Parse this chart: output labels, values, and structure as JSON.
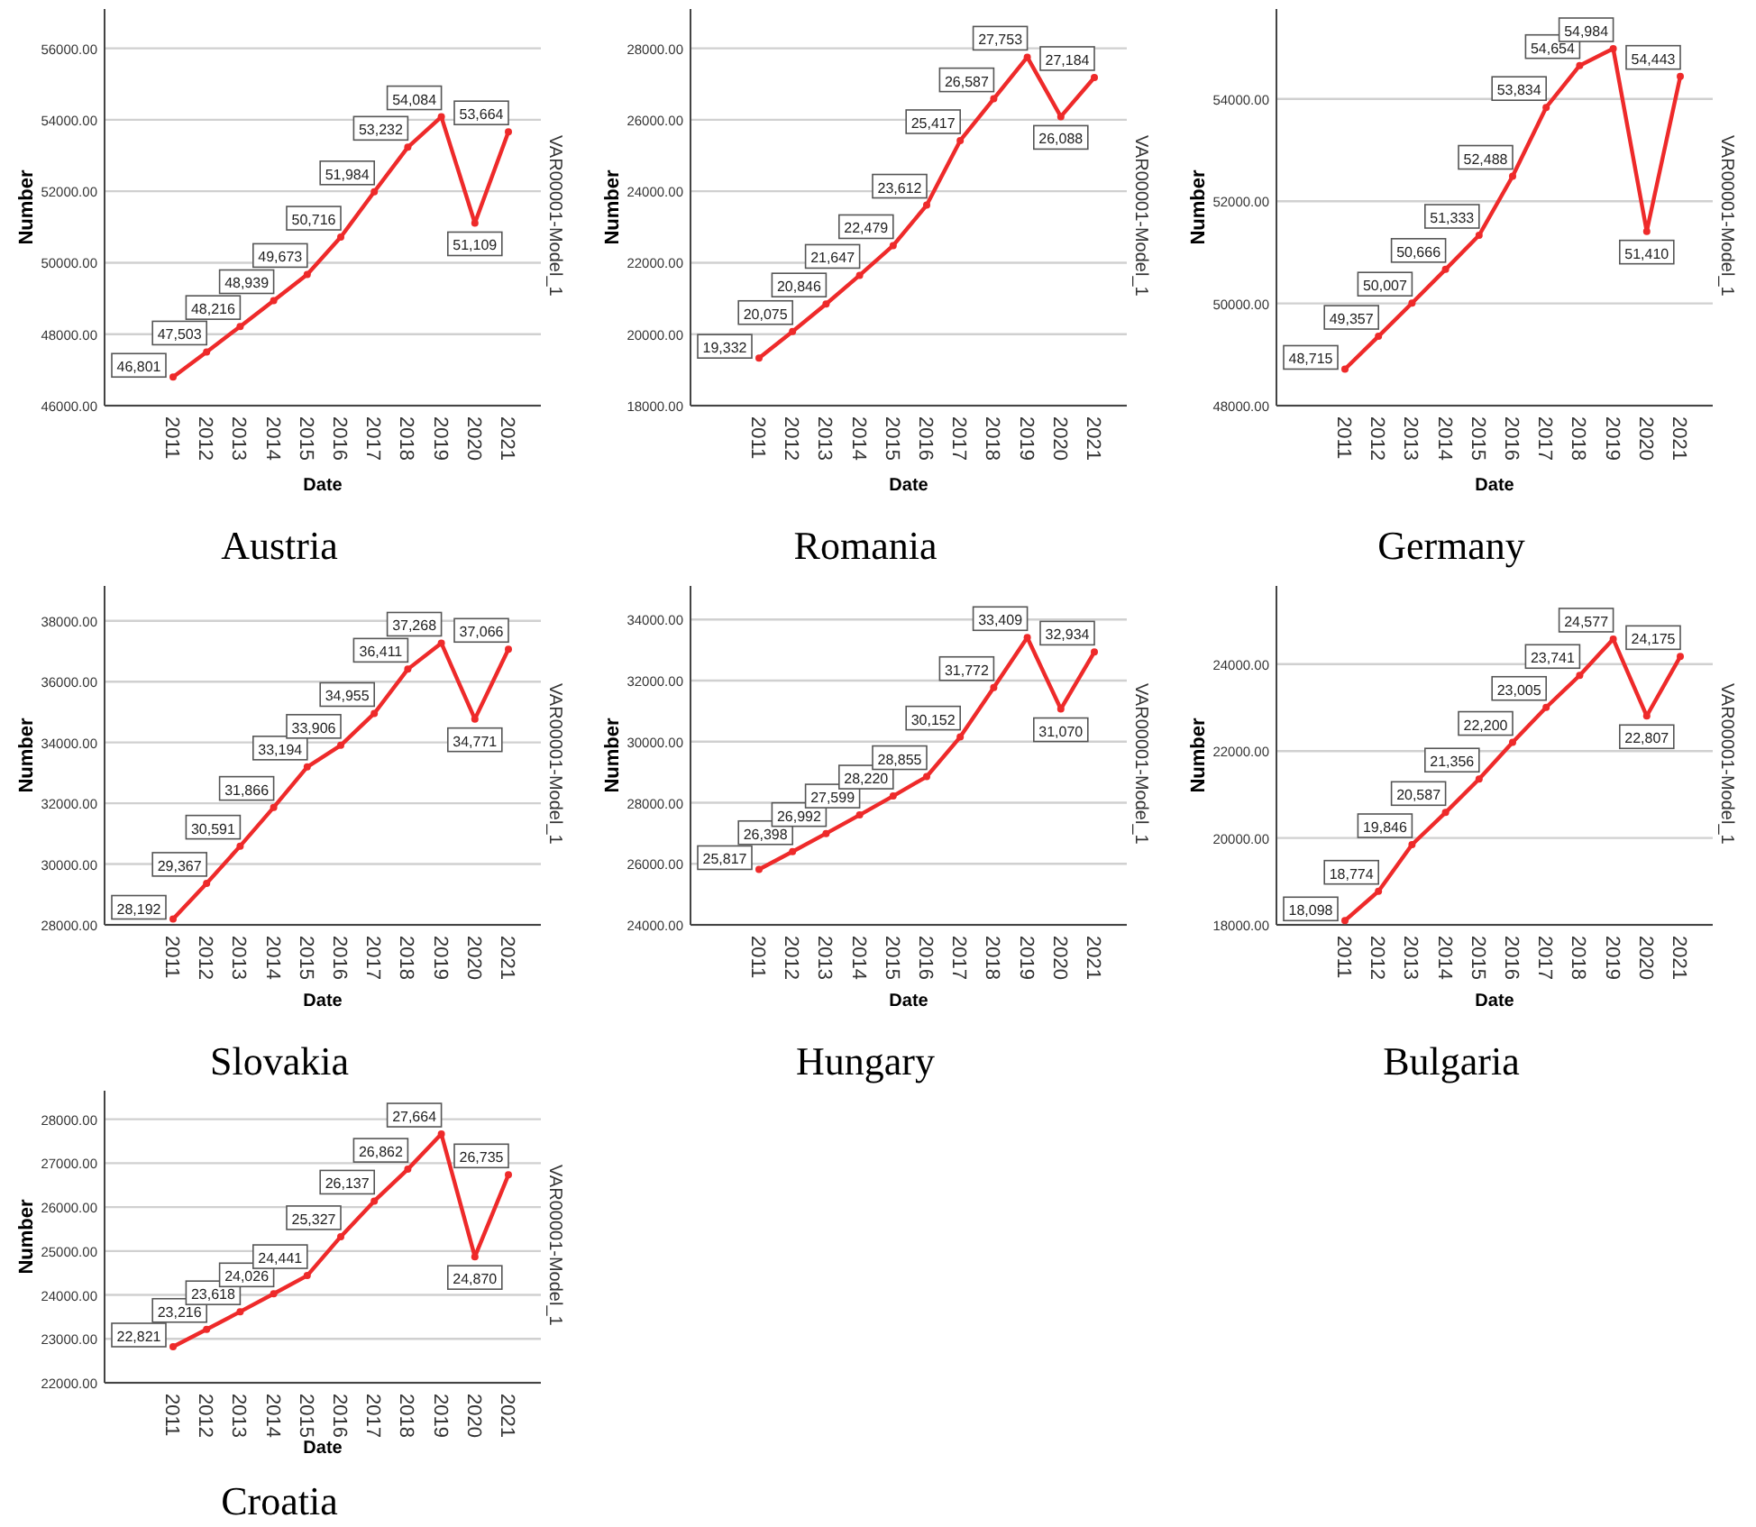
{
  "chart_data": [
    {
      "type": "line",
      "title": "Austria",
      "xlabel": "Date",
      "ylabel": "Number",
      "categories": [
        "2011",
        "2012",
        "2013",
        "2014",
        "2015",
        "2016",
        "2017",
        "2018",
        "2019",
        "2020",
        "2021"
      ],
      "series": [
        {
          "name": "VAR00001-Model_1",
          "color": "#ee2a2a",
          "values": [
            46801,
            47503,
            48216,
            48939,
            49673,
            50716,
            51984,
            53232,
            54084,
            51109,
            53664
          ],
          "value_labels": [
            "46,801",
            "47,503",
            "48,216",
            "48,939",
            "49,673",
            "50,716",
            "51,984",
            "53,232",
            "54,084",
            "51,109",
            "53,664"
          ]
        }
      ],
      "ylim": [
        46000,
        57100
      ],
      "yticks": [
        {
          "value": 46000,
          "label": "46000.00"
        },
        {
          "value": 48000,
          "label": "48000.00"
        },
        {
          "value": 50000,
          "label": "50000.00"
        },
        {
          "value": 52000,
          "label": "52000.00"
        },
        {
          "value": 54000,
          "label": "54000.00"
        },
        {
          "value": 56000,
          "label": "56000.00"
        }
      ],
      "grid": "y",
      "marker": "circle",
      "legend": "right"
    },
    {
      "type": "line",
      "title": "Romania",
      "xlabel": "Date",
      "ylabel": "Number",
      "categories": [
        "2011",
        "2012",
        "2013",
        "2014",
        "2015",
        "2016",
        "2017",
        "2018",
        "2019",
        "2020",
        "2021"
      ],
      "series": [
        {
          "name": "VAR00001-Model_1",
          "color": "#ee2a2a",
          "values": [
            19332,
            20075,
            20846,
            21647,
            22479,
            23612,
            25417,
            26587,
            27753,
            26088,
            27184
          ],
          "value_labels": [
            "19,332",
            "20,075",
            "20,846",
            "21,647",
            "22,479",
            "23,612",
            "25,417",
            "26,587",
            "27,753",
            "26,088",
            "27,184"
          ]
        }
      ],
      "ylim": [
        18000,
        29100
      ],
      "yticks": [
        {
          "value": 18000,
          "label": "18000.00"
        },
        {
          "value": 20000,
          "label": "20000.00"
        },
        {
          "value": 22000,
          "label": "22000.00"
        },
        {
          "value": 24000,
          "label": "24000.00"
        },
        {
          "value": 26000,
          "label": "26000.00"
        },
        {
          "value": 28000,
          "label": "28000.00"
        }
      ],
      "grid": "y",
      "marker": "circle",
      "legend": "right"
    },
    {
      "type": "line",
      "title": "Germany",
      "xlabel": "Date",
      "ylabel": "Number",
      "categories": [
        "2011",
        "2012",
        "2013",
        "2014",
        "2015",
        "2016",
        "2017",
        "2018",
        "2019",
        "2020",
        "2021"
      ],
      "series": [
        {
          "name": "VAR00001-Model_1",
          "color": "#ee2a2a",
          "values": [
            48715,
            49357,
            50007,
            50666,
            51333,
            52488,
            53834,
            54654,
            54984,
            51410,
            54443
          ],
          "value_labels": [
            "48,715",
            "49,357",
            "50,007",
            "50,666",
            "51,333",
            "52,488",
            "53,834",
            "54,654",
            "54,984",
            "51,410",
            "54,443"
          ]
        }
      ],
      "ylim": [
        48000,
        55760
      ],
      "yticks": [
        {
          "value": 48000,
          "label": "48000.00"
        },
        {
          "value": 50000,
          "label": "50000.00"
        },
        {
          "value": 52000,
          "label": "52000.00"
        },
        {
          "value": 54000,
          "label": "54000.00"
        }
      ],
      "grid": "y",
      "marker": "circle",
      "legend": "right"
    },
    {
      "type": "line",
      "title": "Slovakia",
      "xlabel": "Date",
      "ylabel": "Number",
      "categories": [
        "2011",
        "2012",
        "2013",
        "2014",
        "2015",
        "2016",
        "2017",
        "2018",
        "2019",
        "2020",
        "2021"
      ],
      "series": [
        {
          "name": "VAR00001-Model_1",
          "color": "#ee2a2a",
          "values": [
            28192,
            29367,
            30591,
            31866,
            33194,
            33906,
            34955,
            36411,
            37268,
            34771,
            37066
          ],
          "value_labels": [
            "28,192",
            "29,367",
            "30,591",
            "31,866",
            "33,194",
            "33,906",
            "34,955",
            "36,411",
            "37,268",
            "34,771",
            "37,066"
          ]
        }
      ],
      "ylim": [
        28000,
        39150
      ],
      "yticks": [
        {
          "value": 28000,
          "label": "28000.00"
        },
        {
          "value": 30000,
          "label": "30000.00"
        },
        {
          "value": 32000,
          "label": "32000.00"
        },
        {
          "value": 34000,
          "label": "34000.00"
        },
        {
          "value": 36000,
          "label": "36000.00"
        },
        {
          "value": 38000,
          "label": "38000.00"
        }
      ],
      "grid": "y",
      "marker": "circle",
      "legend": "right"
    },
    {
      "type": "line",
      "title": "Hungary",
      "xlabel": "Date",
      "ylabel": "Number",
      "categories": [
        "2011",
        "2012",
        "2013",
        "2014",
        "2015",
        "2016",
        "2017",
        "2018",
        "2019",
        "2020",
        "2021"
      ],
      "series": [
        {
          "name": "VAR00001-Model_1",
          "color": "#ee2a2a",
          "values": [
            25817,
            26398,
            26992,
            27599,
            28220,
            28855,
            30152,
            31772,
            33409,
            31070,
            32934
          ],
          "value_labels": [
            "25,817",
            "26,398",
            "26,992",
            "27,599",
            "28,220",
            "28,855",
            "30,152",
            "31,772",
            "33,409",
            "31,070",
            "32,934"
          ]
        }
      ],
      "ylim": [
        24000,
        35100
      ],
      "yticks": [
        {
          "value": 24000,
          "label": "24000.00"
        },
        {
          "value": 26000,
          "label": "26000.00"
        },
        {
          "value": 28000,
          "label": "28000.00"
        },
        {
          "value": 30000,
          "label": "30000.00"
        },
        {
          "value": 32000,
          "label": "32000.00"
        },
        {
          "value": 34000,
          "label": "34000.00"
        }
      ],
      "grid": "y",
      "marker": "circle",
      "legend": "right"
    },
    {
      "type": "line",
      "title": "Bulgaria",
      "xlabel": "Date",
      "ylabel": "Number",
      "categories": [
        "2011",
        "2012",
        "2013",
        "2014",
        "2015",
        "2016",
        "2017",
        "2018",
        "2019",
        "2020",
        "2021"
      ],
      "series": [
        {
          "name": "VAR00001-Model_1",
          "color": "#ee2a2a",
          "values": [
            18098,
            18774,
            19846,
            20587,
            21356,
            22200,
            23005,
            23741,
            24577,
            22807,
            24175
          ],
          "value_labels": [
            "18,098",
            "18,774",
            "19,846",
            "20,587",
            "21,356",
            "22,200",
            "23,005",
            "23,741",
            "24,577",
            "22,807",
            "24,175"
          ]
        }
      ],
      "ylim": [
        18000,
        25800
      ],
      "yticks": [
        {
          "value": 18000,
          "label": "18000.00"
        },
        {
          "value": 20000,
          "label": "20000.00"
        },
        {
          "value": 22000,
          "label": "22000.00"
        },
        {
          "value": 24000,
          "label": "24000.00"
        }
      ],
      "grid": "y",
      "marker": "circle",
      "legend": "right"
    },
    {
      "type": "line",
      "title": "Croatia",
      "xlabel": "Date",
      "ylabel": "Number",
      "categories": [
        "2011",
        "2012",
        "2013",
        "2014",
        "2015",
        "2016",
        "2017",
        "2018",
        "2019",
        "2020",
        "2021"
      ],
      "series": [
        {
          "name": "VAR00001-Model_1",
          "color": "#ee2a2a",
          "values": [
            22821,
            23216,
            23618,
            24026,
            24441,
            25327,
            26137,
            26862,
            27664,
            24870,
            26735
          ],
          "value_labels": [
            "22,821",
            "23,216",
            "23,618",
            "24,026",
            "24,441",
            "25,327",
            "26,137",
            "26,862",
            "27,664",
            "24,870",
            "26,735"
          ]
        }
      ],
      "ylim": [
        22000,
        28650
      ],
      "yticks": [
        {
          "value": 22000,
          "label": "22000.00"
        },
        {
          "value": 23000,
          "label": "23000.00"
        },
        {
          "value": 24000,
          "label": "24000.00"
        },
        {
          "value": 25000,
          "label": "25000.00"
        },
        {
          "value": 26000,
          "label": "26000.00"
        },
        {
          "value": 27000,
          "label": "27000.00"
        },
        {
          "value": 28000,
          "label": "28000.00"
        }
      ],
      "grid": "y",
      "marker": "circle",
      "legend": "right"
    }
  ]
}
